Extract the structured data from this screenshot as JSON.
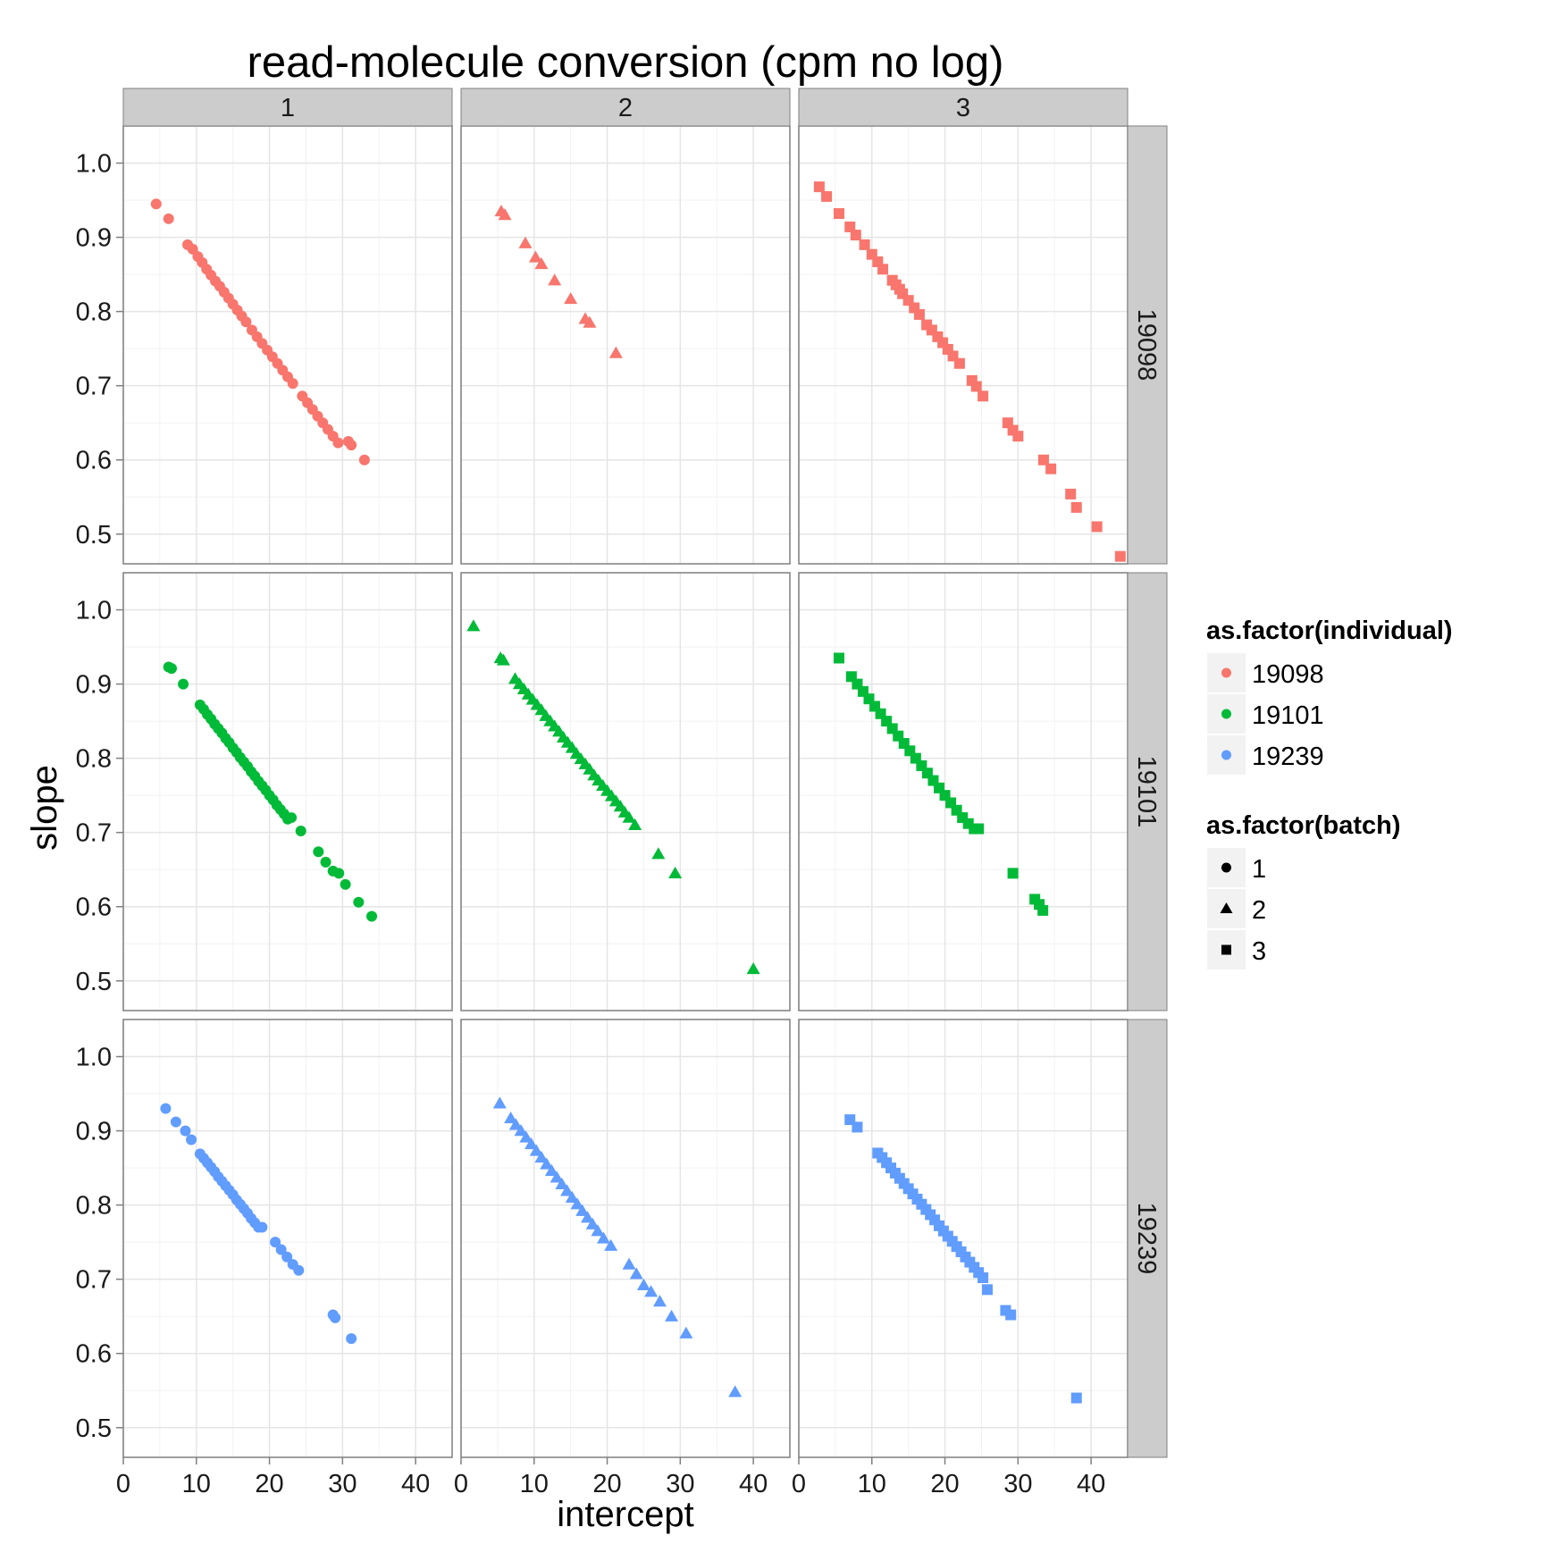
{
  "chart_data": {
    "type": "scatter",
    "title": "read-molecule conversion (cpm no log)",
    "xlabel": "intercept",
    "ylabel": "slope",
    "xlim": [
      0,
      45
    ],
    "ylim": [
      0.46,
      1.05
    ],
    "x_ticks": [
      0,
      10,
      20,
      30,
      40
    ],
    "x_tick_labels": [
      "0",
      "10",
      "20",
      "30",
      "40"
    ],
    "y_ticks": [
      0.5,
      0.6,
      0.7,
      0.8,
      0.9,
      1.0
    ],
    "y_tick_labels": [
      "0.5",
      "0.6",
      "0.7",
      "0.8",
      "0.9",
      "1.0"
    ],
    "grid": true,
    "facet_columns": [
      "1",
      "2",
      "3"
    ],
    "facet_rows": [
      "19098",
      "19101",
      "19239"
    ],
    "colors": {
      "19098": "#F8766D",
      "19101": "#00BA38",
      "19239": "#619CFF"
    },
    "shapes": {
      "1": "circle",
      "2": "triangle",
      "3": "square"
    },
    "legends": [
      {
        "title": "as.factor(individual)",
        "kind": "color",
        "entries": [
          "19098",
          "19101",
          "19239"
        ]
      },
      {
        "title": "as.factor(batch)",
        "kind": "shape",
        "entries": [
          "1",
          "2",
          "3"
        ]
      }
    ],
    "legend_position": "right",
    "panels": [
      {
        "row": "19098",
        "col": "1",
        "x": [
          4.5,
          6.2,
          8.8,
          9.5,
          10.2,
          10.8,
          11.4,
          12,
          12.6,
          13.2,
          13.8,
          14.4,
          15,
          15.6,
          16.2,
          16.8,
          17.6,
          18.3,
          19,
          19.7,
          20.4,
          21.1,
          21.8,
          22.5,
          23.2,
          24.5,
          25.2,
          25.9,
          26.6,
          27.3,
          28,
          28.7,
          29.4,
          30.8,
          31.2,
          33
        ],
        "y": [
          0.945,
          0.925,
          0.89,
          0.884,
          0.874,
          0.866,
          0.857,
          0.849,
          0.841,
          0.834,
          0.826,
          0.818,
          0.81,
          0.802,
          0.794,
          0.786,
          0.775,
          0.766,
          0.757,
          0.748,
          0.739,
          0.73,
          0.721,
          0.712,
          0.703,
          0.686,
          0.677,
          0.668,
          0.659,
          0.65,
          0.641,
          0.632,
          0.623,
          0.625,
          0.62,
          0.6
        ]
      },
      {
        "row": "19098",
        "col": "2",
        "x": [
          5.5,
          6,
          8.8,
          10.2,
          11,
          12.8,
          15,
          17,
          17.6,
          21.2
        ],
        "y": [
          0.935,
          0.93,
          0.892,
          0.873,
          0.864,
          0.842,
          0.817,
          0.79,
          0.785,
          0.744
        ]
      },
      {
        "row": "19098",
        "col": "3",
        "x": [
          2.8,
          3.8,
          5.5,
          7,
          7.8,
          9,
          10,
          10.8,
          11.5,
          12.8,
          13.3,
          13.8,
          14.2,
          15,
          15.8,
          16.5,
          17.5,
          18.2,
          19,
          19.7,
          20.4,
          21.1,
          22,
          23.7,
          24.3,
          25.2,
          28.6,
          29.3,
          30,
          33.5,
          34.5,
          37.2,
          38,
          40.8,
          44
        ],
        "y": [
          0.968,
          0.955,
          0.932,
          0.914,
          0.903,
          0.89,
          0.877,
          0.867,
          0.857,
          0.842,
          0.836,
          0.83,
          0.824,
          0.815,
          0.805,
          0.796,
          0.782,
          0.775,
          0.766,
          0.758,
          0.749,
          0.74,
          0.73,
          0.707,
          0.699,
          0.686,
          0.65,
          0.64,
          0.632,
          0.6,
          0.588,
          0.554,
          0.536,
          0.51,
          0.47
        ]
      },
      {
        "row": "19101",
        "col": "1",
        "x": [
          6.2,
          6.6,
          8.2,
          10.5,
          11,
          11.5,
          12,
          12.5,
          13,
          13.5,
          14,
          14.5,
          15,
          15.5,
          16,
          16.5,
          17,
          17.5,
          18,
          18.5,
          19,
          19.5,
          20,
          20.5,
          21,
          21.5,
          22,
          22.5,
          23,
          24.3,
          26.7,
          27.7,
          28.7,
          29.5,
          30.4,
          32.2,
          34
        ],
        "y": [
          0.923,
          0.921,
          0.9,
          0.872,
          0.866,
          0.859,
          0.853,
          0.846,
          0.84,
          0.834,
          0.827,
          0.821,
          0.814,
          0.808,
          0.801,
          0.795,
          0.789,
          0.782,
          0.776,
          0.769,
          0.763,
          0.757,
          0.75,
          0.744,
          0.737,
          0.731,
          0.725,
          0.718,
          0.72,
          0.702,
          0.674,
          0.66,
          0.648,
          0.645,
          0.63,
          0.606,
          0.587
        ]
      },
      {
        "row": "19101",
        "col": "2",
        "x": [
          1.7,
          5.4,
          5.8,
          7.4,
          8,
          8.6,
          9.2,
          9.8,
          10.4,
          11,
          11.6,
          12.2,
          12.8,
          13.4,
          14,
          14.6,
          15.2,
          15.8,
          16.4,
          17,
          17.6,
          18.2,
          18.8,
          19.4,
          20,
          20.6,
          21.2,
          21.8,
          22.4,
          23,
          23.8,
          27,
          29.3,
          40
        ],
        "y": [
          0.978,
          0.935,
          0.932,
          0.907,
          0.9,
          0.893,
          0.886,
          0.879,
          0.872,
          0.865,
          0.857,
          0.85,
          0.843,
          0.836,
          0.828,
          0.821,
          0.814,
          0.806,
          0.799,
          0.792,
          0.785,
          0.777,
          0.77,
          0.763,
          0.756,
          0.749,
          0.742,
          0.735,
          0.727,
          0.72,
          0.71,
          0.671,
          0.645,
          0.516
        ]
      },
      {
        "row": "19101",
        "col": "3",
        "x": [
          5.5,
          7.2,
          8,
          8.8,
          9.6,
          10.4,
          11.2,
          12,
          12.8,
          13.6,
          14.4,
          15.2,
          16,
          16.8,
          17.6,
          18.4,
          19.2,
          20,
          20.8,
          21.6,
          22.4,
          23.2,
          24,
          24.6,
          29.3,
          32.3,
          32.9,
          33.4
        ],
        "y": [
          0.935,
          0.91,
          0.9,
          0.89,
          0.88,
          0.87,
          0.86,
          0.85,
          0.84,
          0.83,
          0.82,
          0.81,
          0.8,
          0.79,
          0.78,
          0.77,
          0.76,
          0.75,
          0.74,
          0.73,
          0.72,
          0.712,
          0.705,
          0.705,
          0.645,
          0.61,
          0.603,
          0.595
        ]
      },
      {
        "row": "19239",
        "col": "1",
        "x": [
          5.8,
          7.2,
          8.5,
          9.3,
          10.5,
          11,
          11.5,
          12,
          12.5,
          13,
          13.5,
          14,
          14.5,
          15,
          15.5,
          16,
          16.5,
          17,
          17.5,
          18,
          18.5,
          19,
          20.8,
          21.6,
          22.4,
          23.2,
          24,
          28.7,
          29,
          31.2
        ],
        "y": [
          0.93,
          0.912,
          0.9,
          0.888,
          0.869,
          0.863,
          0.857,
          0.851,
          0.845,
          0.838,
          0.832,
          0.826,
          0.82,
          0.814,
          0.807,
          0.801,
          0.795,
          0.789,
          0.782,
          0.776,
          0.77,
          0.77,
          0.75,
          0.74,
          0.73,
          0.72,
          0.712,
          0.652,
          0.648,
          0.62
        ]
      },
      {
        "row": "19239",
        "col": "2",
        "x": [
          5.3,
          6.8,
          7.5,
          8.2,
          8.9,
          9.6,
          10.3,
          11,
          11.7,
          12.4,
          13.1,
          13.8,
          14.5,
          15.2,
          15.9,
          16.6,
          17.3,
          18,
          18.7,
          19.5,
          20.5,
          23,
          24,
          25,
          26,
          27.2,
          28.8,
          30.8,
          37.5
        ],
        "y": [
          0.937,
          0.917,
          0.908,
          0.9,
          0.891,
          0.882,
          0.873,
          0.864,
          0.855,
          0.846,
          0.837,
          0.828,
          0.819,
          0.81,
          0.801,
          0.792,
          0.783,
          0.774,
          0.765,
          0.755,
          0.745,
          0.72,
          0.707,
          0.692,
          0.683,
          0.67,
          0.65,
          0.627,
          0.548
        ]
      },
      {
        "row": "19239",
        "col": "3",
        "x": [
          7,
          8,
          10.8,
          11.4,
          12,
          12.6,
          13.2,
          13.8,
          14.4,
          15,
          15.6,
          16.2,
          16.8,
          17.4,
          18,
          18.6,
          19.2,
          19.8,
          20.4,
          21,
          21.6,
          22.2,
          22.8,
          23.4,
          24,
          24.6,
          25.2,
          25.8,
          28.3,
          29,
          38
        ],
        "y": [
          0.915,
          0.905,
          0.87,
          0.864,
          0.857,
          0.85,
          0.843,
          0.836,
          0.829,
          0.822,
          0.815,
          0.808,
          0.801,
          0.794,
          0.787,
          0.78,
          0.772,
          0.765,
          0.758,
          0.751,
          0.744,
          0.737,
          0.73,
          0.723,
          0.716,
          0.709,
          0.702,
          0.686,
          0.658,
          0.652,
          0.54
        ]
      }
    ]
  }
}
